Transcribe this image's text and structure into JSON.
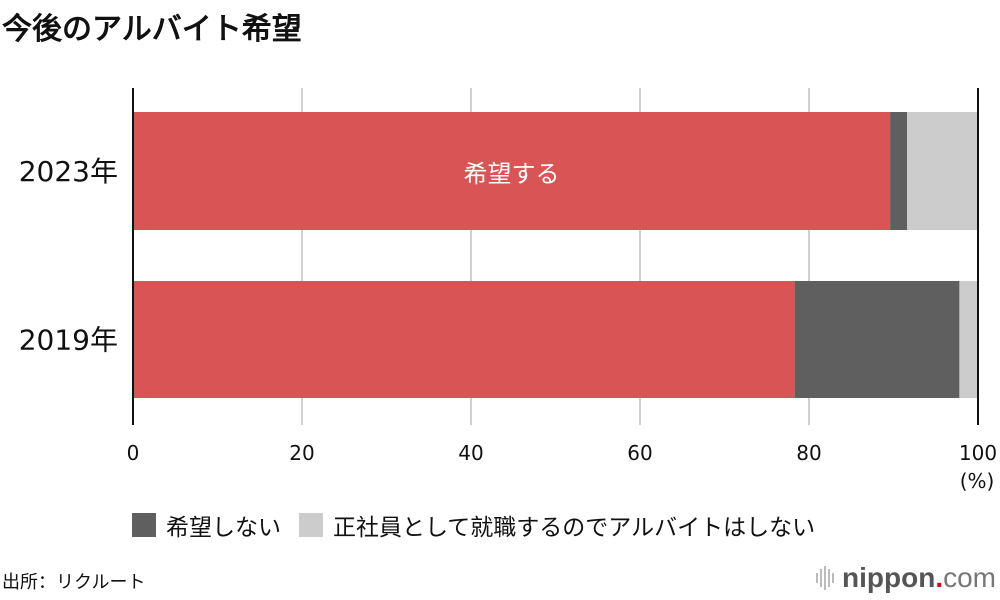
{
  "title": "今後のアルバイト希望",
  "chart_data": {
    "type": "bar",
    "orientation": "horizontal",
    "stacked": true,
    "categories": [
      "2023年",
      "2019年"
    ],
    "series": [
      {
        "name": "希望する",
        "values": [
          89.6,
          78.3
        ],
        "color": "#d95555"
      },
      {
        "name": "希望しない",
        "values": [
          2.0,
          19.5
        ],
        "color": "#5f5f5f"
      },
      {
        "name": "正社員として就職するのでアルバイトはしない",
        "values": [
          8.4,
          2.2
        ],
        "color": "#cccccc"
      }
    ],
    "xlim": [
      0,
      100
    ],
    "xticks": [
      "0",
      "20",
      "40",
      "60",
      "80",
      "100"
    ],
    "xunit": "(%)",
    "grid": true,
    "legend": "bottom",
    "inline_label": "希望する"
  },
  "source": "出所：リクルート",
  "logo": {
    "main": "nippon",
    "dot": ".",
    "suffix": "com",
    "dot_color": "#e60012"
  }
}
